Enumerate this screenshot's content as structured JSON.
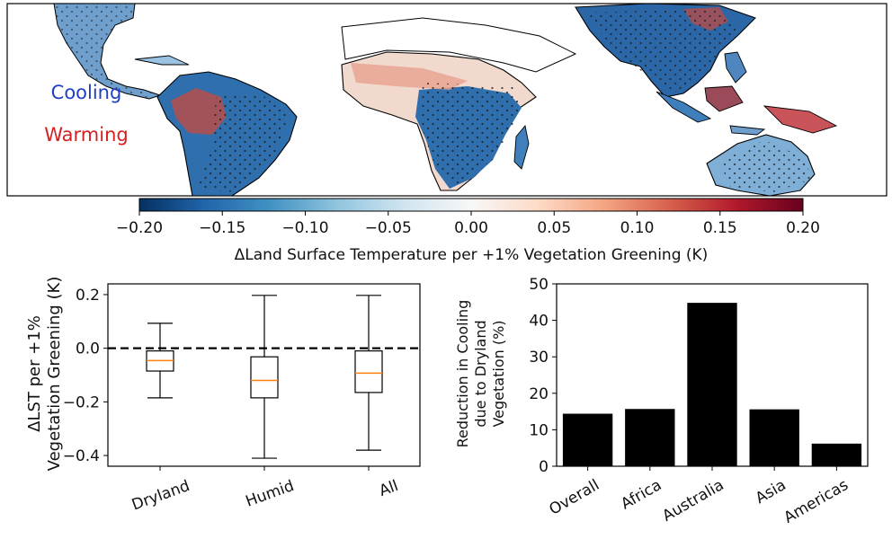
{
  "map": {
    "label_cooling": "Cooling",
    "label_warming": "Warming",
    "cooling_color": "#1f3fc4",
    "warming_color": "#d42020",
    "land_fill": "#ffffff",
    "ocean_fill": "#ffffff"
  },
  "colorbar": {
    "ticks": [
      "−0.20",
      "−0.15",
      "−0.10",
      "−0.05",
      "0.00",
      "0.05",
      "0.10",
      "0.15",
      "0.20"
    ],
    "label": "ΔLand Surface Temperature per +1% Vegetation Greening (K)",
    "range": [
      -0.2,
      0.2
    ],
    "colormap": "RdBu_r"
  },
  "chart_data": [
    {
      "type": "box",
      "title": "",
      "ylabel_line1": "ΔLST per +1%",
      "ylabel_line2": "Vegetation Greening (K)",
      "ylabel_italic": "LST",
      "ylim": [
        -0.44,
        0.24
      ],
      "yticks": [
        0.2,
        0.0,
        -0.2,
        -0.4
      ],
      "ytick_labels": [
        "0.2",
        "0.0",
        "−0.2",
        "−0.4"
      ],
      "reference_line": 0.0,
      "median_color": "#ff7f0e",
      "boxes": [
        {
          "category": "Dryland",
          "whisker_high": 0.093,
          "q3": -0.01,
          "median": -0.046,
          "q1": -0.085,
          "whisker_low": -0.185
        },
        {
          "category": "Humid",
          "whisker_high": 0.197,
          "q3": -0.032,
          "median": -0.12,
          "q1": -0.185,
          "whisker_low": -0.41
        },
        {
          "category": "All",
          "whisker_high": 0.197,
          "q3": -0.01,
          "median": -0.093,
          "q1": -0.165,
          "whisker_low": -0.38
        }
      ]
    },
    {
      "type": "bar",
      "title": "",
      "ylabel_lines": [
        "Reduction in Cooling",
        "due to Dryland",
        "Vegetation (%)"
      ],
      "ylim": [
        0,
        50
      ],
      "yticks": [
        0,
        10,
        20,
        30,
        40,
        50
      ],
      "ytick_labels": [
        "0",
        "10",
        "20",
        "30",
        "40",
        "50"
      ],
      "bar_color": "#000000",
      "categories": [
        "Overall",
        "Africa",
        "Australia",
        "Asia",
        "Americas"
      ],
      "values": [
        14.4,
        15.7,
        44.8,
        15.6,
        6.2
      ]
    }
  ]
}
